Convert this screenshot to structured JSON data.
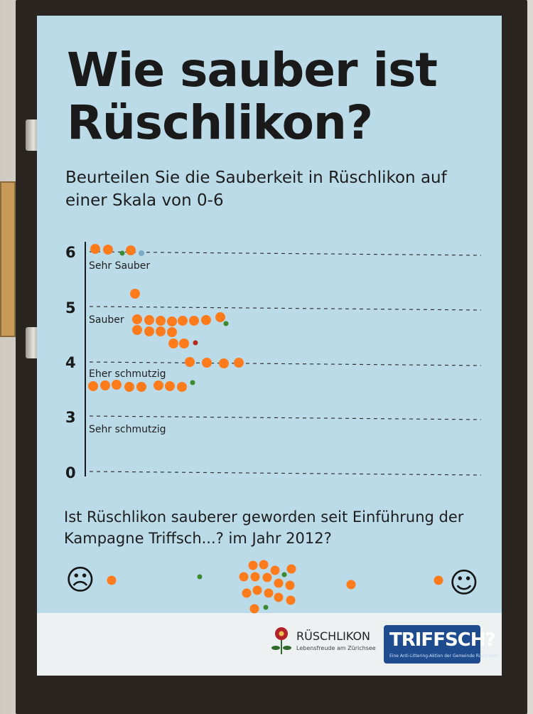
{
  "title": "Wie sauber ist Rüschlikon?",
  "subtitle": "Beurteilen Sie die Sauberkeit in Rüschlikon auf einer Skala von 0-6",
  "question": "Ist Rüschlikon sauberer geworden seit Einführung der Kampagne Triffsch...? im Jahr 2012?",
  "scale": {
    "ticks": [
      "6",
      "5",
      "4",
      "3",
      "0"
    ],
    "bands": [
      "Sehr Sauber",
      "Sauber",
      "Eher schmutzig",
      "Sehr schmutzig"
    ]
  },
  "faces": {
    "sad": "☹",
    "happy": "☺"
  },
  "logos": {
    "rueschlikon_name": "RÜSCHLIKON",
    "rueschlikon_tagline": "Lebensfreude am Zürichsee",
    "triffsch": "TRIFFSCH?",
    "triffsch_tagline": "Eine Anti-Littering-Aktion der Gemeinde Rüschlikon"
  },
  "colors": {
    "poster": "#bcdbe8",
    "dot_orange": "#ff7b1c",
    "dot_green": "#3a8a2e",
    "dot_red": "#b02a1e",
    "dot_blue": "#7aaac8",
    "triffsch_blue": "#1f4b8f"
  }
}
